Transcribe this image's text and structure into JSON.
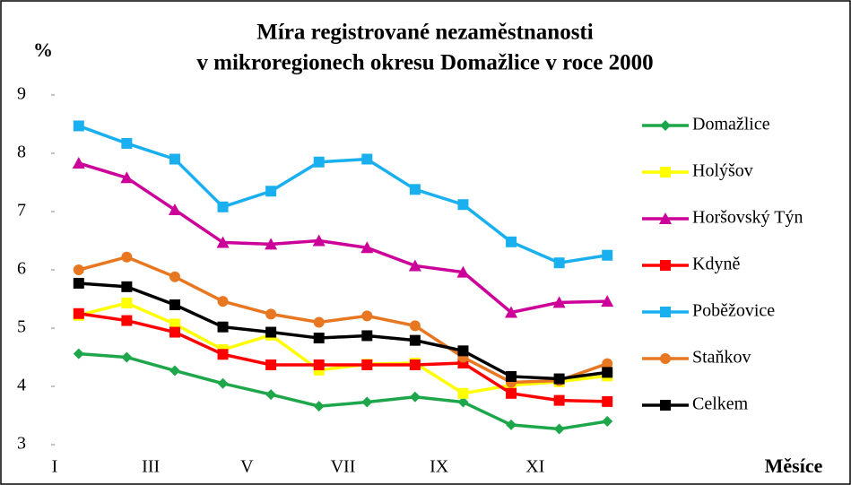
{
  "chart_data": {
    "type": "line",
    "title": [
      "Míra registrované nezaměstnanosti",
      "v mikroregionech okresu Domažlice v roce 2000"
    ],
    "y_label": "%",
    "x_label": "Měsíce",
    "categories": [
      "I",
      null,
      "III",
      null,
      "V",
      null,
      "VII",
      null,
      "IX",
      null,
      "XI",
      null
    ],
    "ylim": [
      3,
      9
    ],
    "yticks": [
      3,
      4,
      5,
      6,
      7,
      8,
      9
    ],
    "legend": "right",
    "series": [
      {
        "name": "Domažlice",
        "color": "#1ea64b",
        "marker": "diamond",
        "values": [
          4.56,
          4.5,
          4.27,
          4.05,
          3.86,
          3.66,
          3.73,
          3.82,
          3.73,
          3.34,
          3.27,
          3.4
        ]
      },
      {
        "name": "Holýšov",
        "color": "#ffff00",
        "marker": "square",
        "values": [
          5.22,
          5.43,
          5.07,
          4.63,
          4.88,
          4.28,
          4.38,
          4.4,
          3.88,
          4.02,
          4.08,
          4.18
        ]
      },
      {
        "name": "Horšovský Týn",
        "color": "#cc0099",
        "marker": "triangle",
        "values": [
          7.83,
          7.58,
          7.03,
          6.47,
          6.44,
          6.5,
          6.38,
          6.07,
          5.96,
          5.27,
          5.44,
          5.46
        ]
      },
      {
        "name": "Kdyně",
        "color": "#ff0000",
        "marker": "square",
        "values": [
          5.25,
          5.13,
          4.93,
          4.55,
          4.37,
          4.37,
          4.37,
          4.37,
          4.4,
          3.88,
          3.76,
          3.74
        ]
      },
      {
        "name": "Poběžovice",
        "color": "#1ab0f0",
        "marker": "square",
        "values": [
          8.47,
          8.17,
          7.9,
          7.08,
          7.35,
          7.85,
          7.9,
          7.38,
          7.12,
          6.48,
          6.12,
          6.25
        ]
      },
      {
        "name": "Staňkov",
        "color": "#e87722",
        "marker": "circle",
        "values": [
          6.0,
          6.22,
          5.88,
          5.46,
          5.24,
          5.1,
          5.21,
          5.04,
          4.5,
          4.07,
          4.1,
          4.39
        ]
      },
      {
        "name": "Celkem",
        "color": "#000000",
        "marker": "square",
        "values": [
          5.77,
          5.71,
          5.4,
          5.02,
          4.93,
          4.83,
          4.87,
          4.79,
          4.61,
          4.17,
          4.13,
          4.24
        ]
      }
    ]
  }
}
